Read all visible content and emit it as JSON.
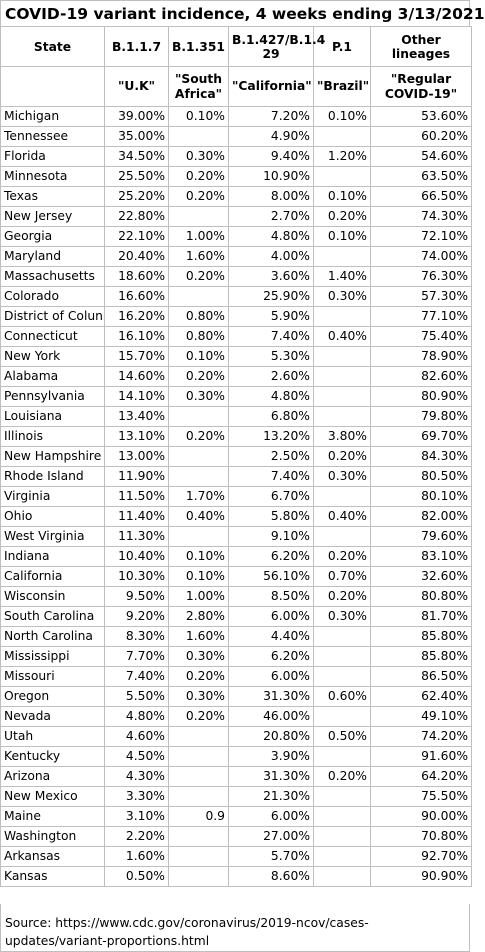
{
  "title": "COVID-19 variant incidence, 4 weeks ending 3/13/2021",
  "headers": [
    "State",
    "B.1.1.7",
    "B.1.351",
    "B.1.427/B.1.4 29",
    "P.1",
    "Other lineages"
  ],
  "subheaders": [
    "",
    "\"U.K\"",
    "\"South Africa\"",
    "\"California\"",
    "\"Brazil\"",
    "\"Regular COVID-19\""
  ],
  "rows": [
    [
      "Michigan",
      "39.00%",
      "0.10%",
      "7.20%",
      "0.10%",
      "53.60%"
    ],
    [
      "Tennessee",
      "35.00%",
      "",
      "4.90%",
      "",
      "60.20%"
    ],
    [
      "Florida",
      "34.50%",
      "0.30%",
      "9.40%",
      "1.20%",
      "54.60%"
    ],
    [
      "Minnesota",
      "25.50%",
      "0.20%",
      "10.90%",
      "",
      "63.50%"
    ],
    [
      "Texas",
      "25.20%",
      "0.20%",
      "8.00%",
      "0.10%",
      "66.50%"
    ],
    [
      "New Jersey",
      "22.80%",
      "",
      "2.70%",
      "0.20%",
      "74.30%"
    ],
    [
      "Georgia",
      "22.10%",
      "1.00%",
      "4.80%",
      "0.10%",
      "72.10%"
    ],
    [
      "Maryland",
      "20.40%",
      "1.60%",
      "4.00%",
      "",
      "74.00%"
    ],
    [
      "Massachusetts",
      "18.60%",
      "0.20%",
      "3.60%",
      "1.40%",
      "76.30%"
    ],
    [
      "Colorado",
      "16.60%",
      "",
      "25.90%",
      "0.30%",
      "57.30%"
    ],
    [
      "District of Colun",
      "16.20%",
      "0.80%",
      "5.90%",
      "",
      "77.10%"
    ],
    [
      "Connecticut",
      "16.10%",
      "0.80%",
      "7.40%",
      "0.40%",
      "75.40%"
    ],
    [
      "New York",
      "15.70%",
      "0.10%",
      "5.30%",
      "",
      "78.90%"
    ],
    [
      "Alabama",
      "14.60%",
      "0.20%",
      "2.60%",
      "",
      "82.60%"
    ],
    [
      "Pennsylvania",
      "14.10%",
      "0.30%",
      "4.80%",
      "",
      "80.90%"
    ],
    [
      "Louisiana",
      "13.40%",
      "",
      "6.80%",
      "",
      "79.80%"
    ],
    [
      "Illinois",
      "13.10%",
      "0.20%",
      "13.20%",
      "3.80%",
      "69.70%"
    ],
    [
      "New Hampshire",
      "13.00%",
      "",
      "2.50%",
      "0.20%",
      "84.30%"
    ],
    [
      "Rhode Island",
      "11.90%",
      "",
      "7.40%",
      "0.30%",
      "80.50%"
    ],
    [
      "Virginia",
      "11.50%",
      "1.70%",
      "6.70%",
      "",
      "80.10%"
    ],
    [
      "Ohio",
      "11.40%",
      "0.40%",
      "5.80%",
      "0.40%",
      "82.00%"
    ],
    [
      "West Virginia",
      "11.30%",
      "",
      "9.10%",
      "",
      "79.60%"
    ],
    [
      "Indiana",
      "10.40%",
      "0.10%",
      "6.20%",
      "0.20%",
      "83.10%"
    ],
    [
      "California",
      "10.30%",
      "0.10%",
      "56.10%",
      "0.70%",
      "32.60%"
    ],
    [
      "Wisconsin",
      "9.50%",
      "1.00%",
      "8.50%",
      "0.20%",
      "80.80%"
    ],
    [
      "South Carolina",
      "9.20%",
      "2.80%",
      "6.00%",
      "0.30%",
      "81.70%"
    ],
    [
      "North Carolina",
      "8.30%",
      "1.60%",
      "4.40%",
      "",
      "85.80%"
    ],
    [
      "Mississippi",
      "7.70%",
      "0.30%",
      "6.20%",
      "",
      "85.80%"
    ],
    [
      "Missouri",
      "7.40%",
      "0.20%",
      "6.00%",
      "",
      "86.50%"
    ],
    [
      "Oregon",
      "5.50%",
      "0.30%",
      "31.30%",
      "0.60%",
      "62.40%"
    ],
    [
      "Nevada",
      "4.80%",
      "0.20%",
      "46.00%",
      "",
      "49.10%"
    ],
    [
      "Utah",
      "4.60%",
      "",
      "20.80%",
      "0.50%",
      "74.20%"
    ],
    [
      "Kentucky",
      "4.50%",
      "",
      "3.90%",
      "",
      "91.60%"
    ],
    [
      "Arizona",
      "4.30%",
      "",
      "31.30%",
      "0.20%",
      "64.20%"
    ],
    [
      "New Mexico",
      "3.30%",
      "",
      "21.30%",
      "",
      "75.50%"
    ],
    [
      "Maine",
      "3.10%",
      "0.9",
      "6.00%",
      "",
      "90.00%"
    ],
    [
      "Washington",
      "2.20%",
      "",
      "27.00%",
      "",
      "70.80%"
    ],
    [
      "Arkansas",
      "1.60%",
      "",
      "5.70%",
      "",
      "92.70%"
    ],
    [
      "Kansas",
      "0.50%",
      "",
      "8.60%",
      "",
      "90.90%"
    ]
  ],
  "source": "Source:  https://www.cdc.gov/coronavirus/2019-ncov/cases-updates/variant-proportions.html"
}
